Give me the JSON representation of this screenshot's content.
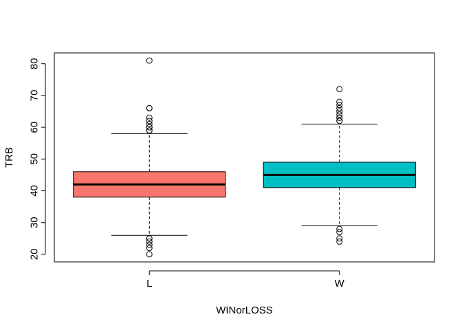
{
  "chart_data": {
    "type": "boxplot",
    "title": "",
    "xlabel": "WINorLOSS",
    "ylabel": "TRB",
    "ylim": [
      17.6,
      83.4
    ],
    "yticks": [
      20,
      30,
      40,
      50,
      60,
      70,
      80
    ],
    "grid": false,
    "legend": "none",
    "categories": [
      "L",
      "W"
    ],
    "boxes": [
      {
        "category": "L",
        "color": "#F8766D",
        "whisker_low": 26,
        "q1": 38,
        "median": 42,
        "q3": 46,
        "whisker_high": 58,
        "outliers": [
          20,
          22,
          23,
          24,
          25,
          25,
          59,
          59,
          60,
          60,
          61,
          62,
          63,
          66,
          66,
          81
        ]
      },
      {
        "category": "W",
        "color": "#00BFC4",
        "whisker_low": 29,
        "q1": 41,
        "median": 45,
        "q3": 49,
        "whisker_high": 61,
        "outliers": [
          24,
          25,
          27,
          28,
          62,
          62,
          63,
          63,
          64,
          65,
          66,
          67,
          68,
          72
        ]
      }
    ]
  }
}
